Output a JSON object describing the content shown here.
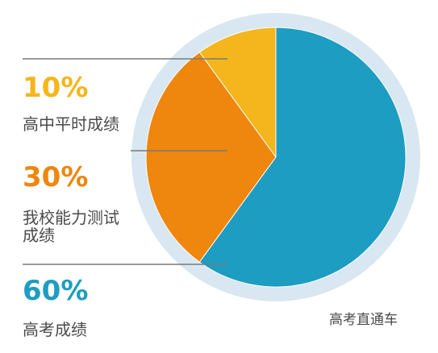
{
  "chart_data": {
    "type": "pie",
    "slices": [
      {
        "label": "高中平时成绩",
        "value": 10,
        "value_label": "10%",
        "color": "#f5b51c"
      },
      {
        "label": "我校能力测试成绩",
        "value": 30,
        "value_label": "30%",
        "color": "#ef860d"
      },
      {
        "label": "高考成绩",
        "value": 60,
        "value_label": "60%",
        "color": "#1d9dc1"
      }
    ],
    "ring_color": "#d8e7f1",
    "leader_color": "#7a7a7a",
    "label_text_color": "#4a4a4a",
    "legend_position": "left",
    "start_angle_deg": 0,
    "direction": "counterclockwise"
  },
  "labels": [
    {
      "percent": "10%",
      "text": "高中平时成绩"
    },
    {
      "percent": "30%",
      "text": "我校能力测试\n成绩"
    },
    {
      "percent": "60%",
      "text": "高考成绩"
    }
  ],
  "source": "高考直通车"
}
